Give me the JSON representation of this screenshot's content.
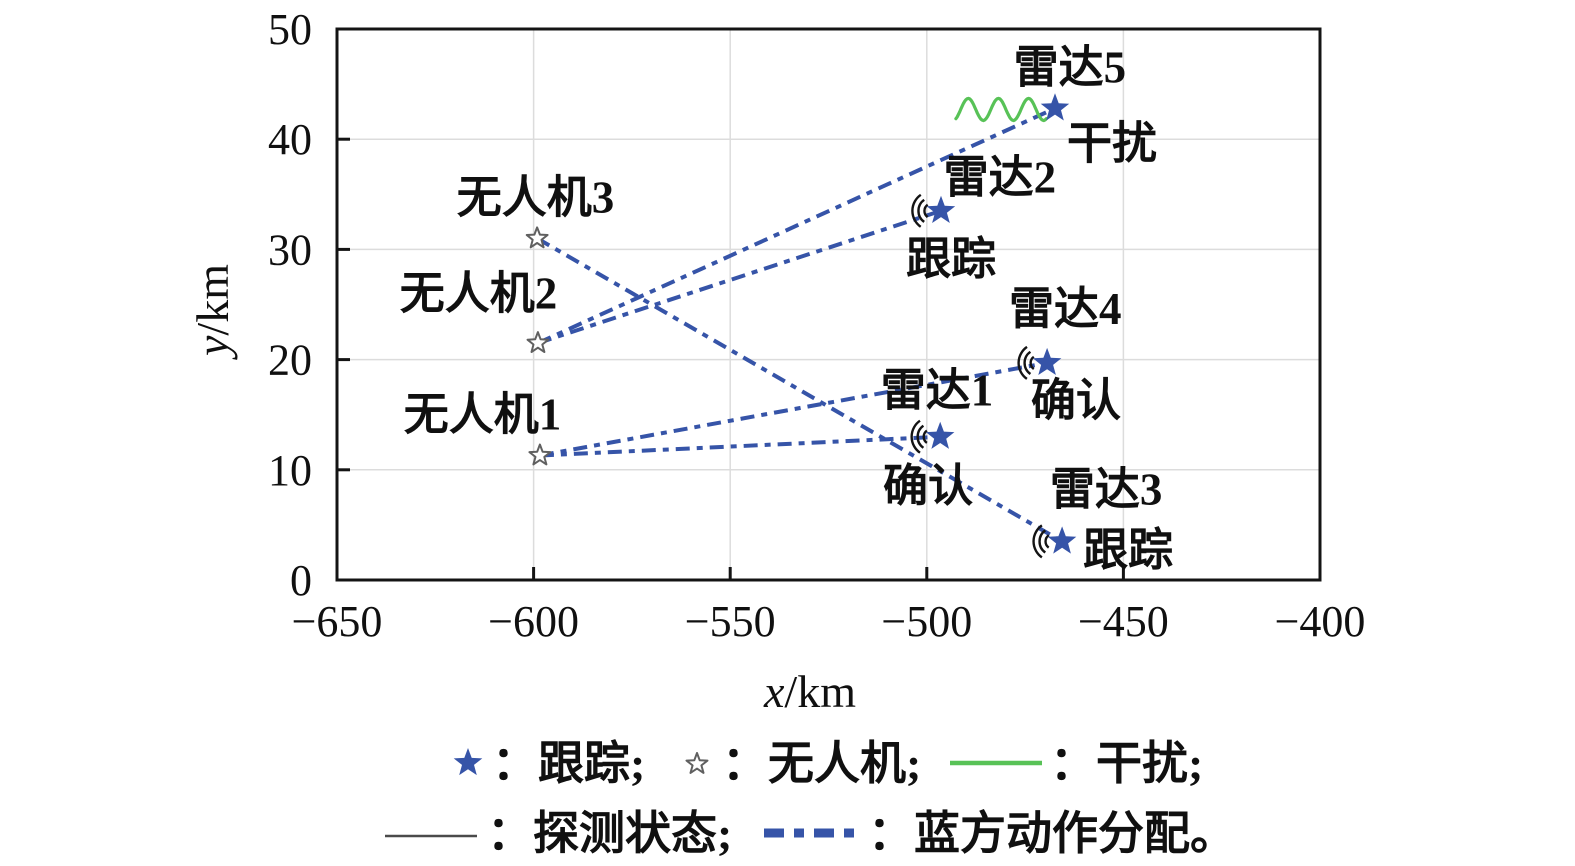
{
  "colors": {
    "blue": "#3654a8",
    "green": "#58c257",
    "grid": "#dcdcdc",
    "axis": "#141414",
    "text": "#101010",
    "detect_line": "#4a4a4a",
    "uav_star_edge": "#606060",
    "uav_star_fill": "#ffffff"
  },
  "chart_data": {
    "type": "scatter",
    "title": "",
    "xlabel": "x/km",
    "ylabel": "y/km",
    "xlim": [
      -650,
      -400
    ],
    "ylim": [
      0,
      50
    ],
    "grid": true,
    "legend_position": "bottom",
    "xticks": [
      {
        "v": -650,
        "label": "−650"
      },
      {
        "v": -600,
        "label": "−600"
      },
      {
        "v": -550,
        "label": "−550"
      },
      {
        "v": -500,
        "label": "−500"
      },
      {
        "v": -450,
        "label": "−450"
      },
      {
        "v": -400,
        "label": "−400"
      }
    ],
    "yticks": [
      {
        "v": 0,
        "label": "0"
      },
      {
        "v": 10,
        "label": "10"
      },
      {
        "v": 20,
        "label": "20"
      },
      {
        "v": 30,
        "label": "30"
      },
      {
        "v": 40,
        "label": "40"
      },
      {
        "v": 50,
        "label": "50"
      }
    ],
    "uavs": [
      {
        "id": "uav1",
        "label": "无人机1",
        "x": -598.4,
        "y": 11.3,
        "label_x": -613.0,
        "label_y": 15.1
      },
      {
        "id": "uav2",
        "label": "无人机2",
        "x": -598.9,
        "y": 21.5,
        "label_x": -614.0,
        "label_y": 26.1
      },
      {
        "id": "uav3",
        "label": "无人机3",
        "x": -599.1,
        "y": 31.0,
        "label_x": -599.5,
        "label_y": 34.8
      }
    ],
    "radars": [
      {
        "id": "radar1",
        "label": "雷达1",
        "x": -496.6,
        "y": 13.0,
        "action": "确认",
        "detected": true,
        "label_x": -497.4,
        "label_y": 17.3,
        "action_x": -499.7,
        "action_y": 8.6
      },
      {
        "id": "radar2",
        "label": "雷达2",
        "x": -496.4,
        "y": 33.5,
        "action": "跟踪",
        "detected": true,
        "label_x": -481.4,
        "label_y": 36.6,
        "action_x": -493.8,
        "action_y": 29.2
      },
      {
        "id": "radar3",
        "label": "雷达3",
        "x": -465.6,
        "y": 3.5,
        "action": "跟踪",
        "detected": true,
        "label_x": -454.4,
        "label_y": 8.3,
        "action_x": -448.8,
        "action_y": 2.8
      },
      {
        "id": "radar4",
        "label": "雷达4",
        "x": -469.4,
        "y": 19.7,
        "action": "确认",
        "detected": true,
        "label_x": -464.8,
        "label_y": 24.7,
        "action_x": -462.1,
        "action_y": 16.4
      },
      {
        "id": "radar5",
        "label": "雷达5",
        "x": -467.4,
        "y": 42.8,
        "action": "干扰",
        "detected": false,
        "label_x": -463.6,
        "label_y": 46.6,
        "action_x": -452.9,
        "action_y": 39.7
      }
    ],
    "assignments": [
      {
        "from": "uav1",
        "to": "radar1"
      },
      {
        "from": "uav1",
        "to": "radar4"
      },
      {
        "from": "uav2",
        "to": "radar2"
      },
      {
        "from": "uav2",
        "to": "radar5"
      },
      {
        "from": "uav3",
        "to": "radar3"
      }
    ],
    "jam_wave": {
      "x1": -492.6,
      "x2": -469.6,
      "y": 42.7,
      "amplitude": 1.0,
      "cycles": 3
    }
  },
  "legend": {
    "rows": [
      {
        "items": [
          {
            "symbol": "star-filled",
            "label": "：跟踪;"
          },
          {
            "symbol": "star-open",
            "label": "：无人机;"
          },
          {
            "symbol": "line-green",
            "label": "：干扰;"
          }
        ]
      },
      {
        "items": [
          {
            "symbol": "line-thin",
            "label": "：探测状态;"
          },
          {
            "symbol": "line-blue-dash",
            "label": "：蓝方动作分配。"
          }
        ]
      }
    ]
  }
}
